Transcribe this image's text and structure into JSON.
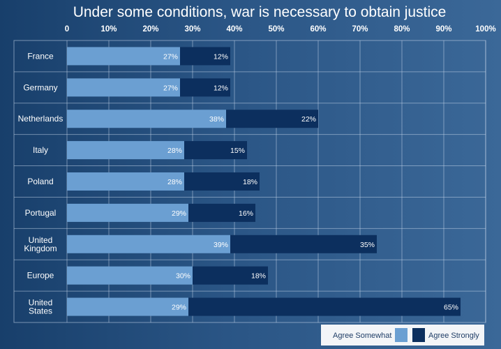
{
  "chart_data": {
    "type": "bar",
    "orientation": "horizontal",
    "stacked": true,
    "title": "Under some conditions, war is necessary to obtain justice",
    "xlim": [
      0,
      100
    ],
    "tick_labels": [
      "0",
      "10%",
      "20%",
      "30%",
      "40%",
      "50%",
      "60%",
      "70%",
      "80%",
      "90%",
      "100%"
    ],
    "categories": [
      "France",
      "Germany",
      "Netherlands",
      "Italy",
      "Poland",
      "Portugal",
      "United Kingdom",
      "Europe",
      "United States"
    ],
    "series": [
      {
        "name": "Agree Somewhat",
        "color": "#6b9fd2",
        "values": [
          27,
          27,
          38,
          28,
          28,
          29,
          39,
          30,
          29
        ],
        "labels": [
          "27%",
          "27%",
          "38%",
          "28%",
          "28%",
          "29%",
          "39%",
          "30%",
          "29%"
        ]
      },
      {
        "name": "Agree Strongly",
        "color": "#0c2f5e",
        "values": [
          12,
          12,
          22,
          15,
          18,
          16,
          35,
          18,
          65
        ],
        "labels": [
          "12%",
          "12%",
          "22%",
          "15%",
          "18%",
          "16%",
          "35%",
          "18%",
          "65%"
        ]
      }
    ],
    "legend_position": "bottom-right",
    "grid": true
  }
}
